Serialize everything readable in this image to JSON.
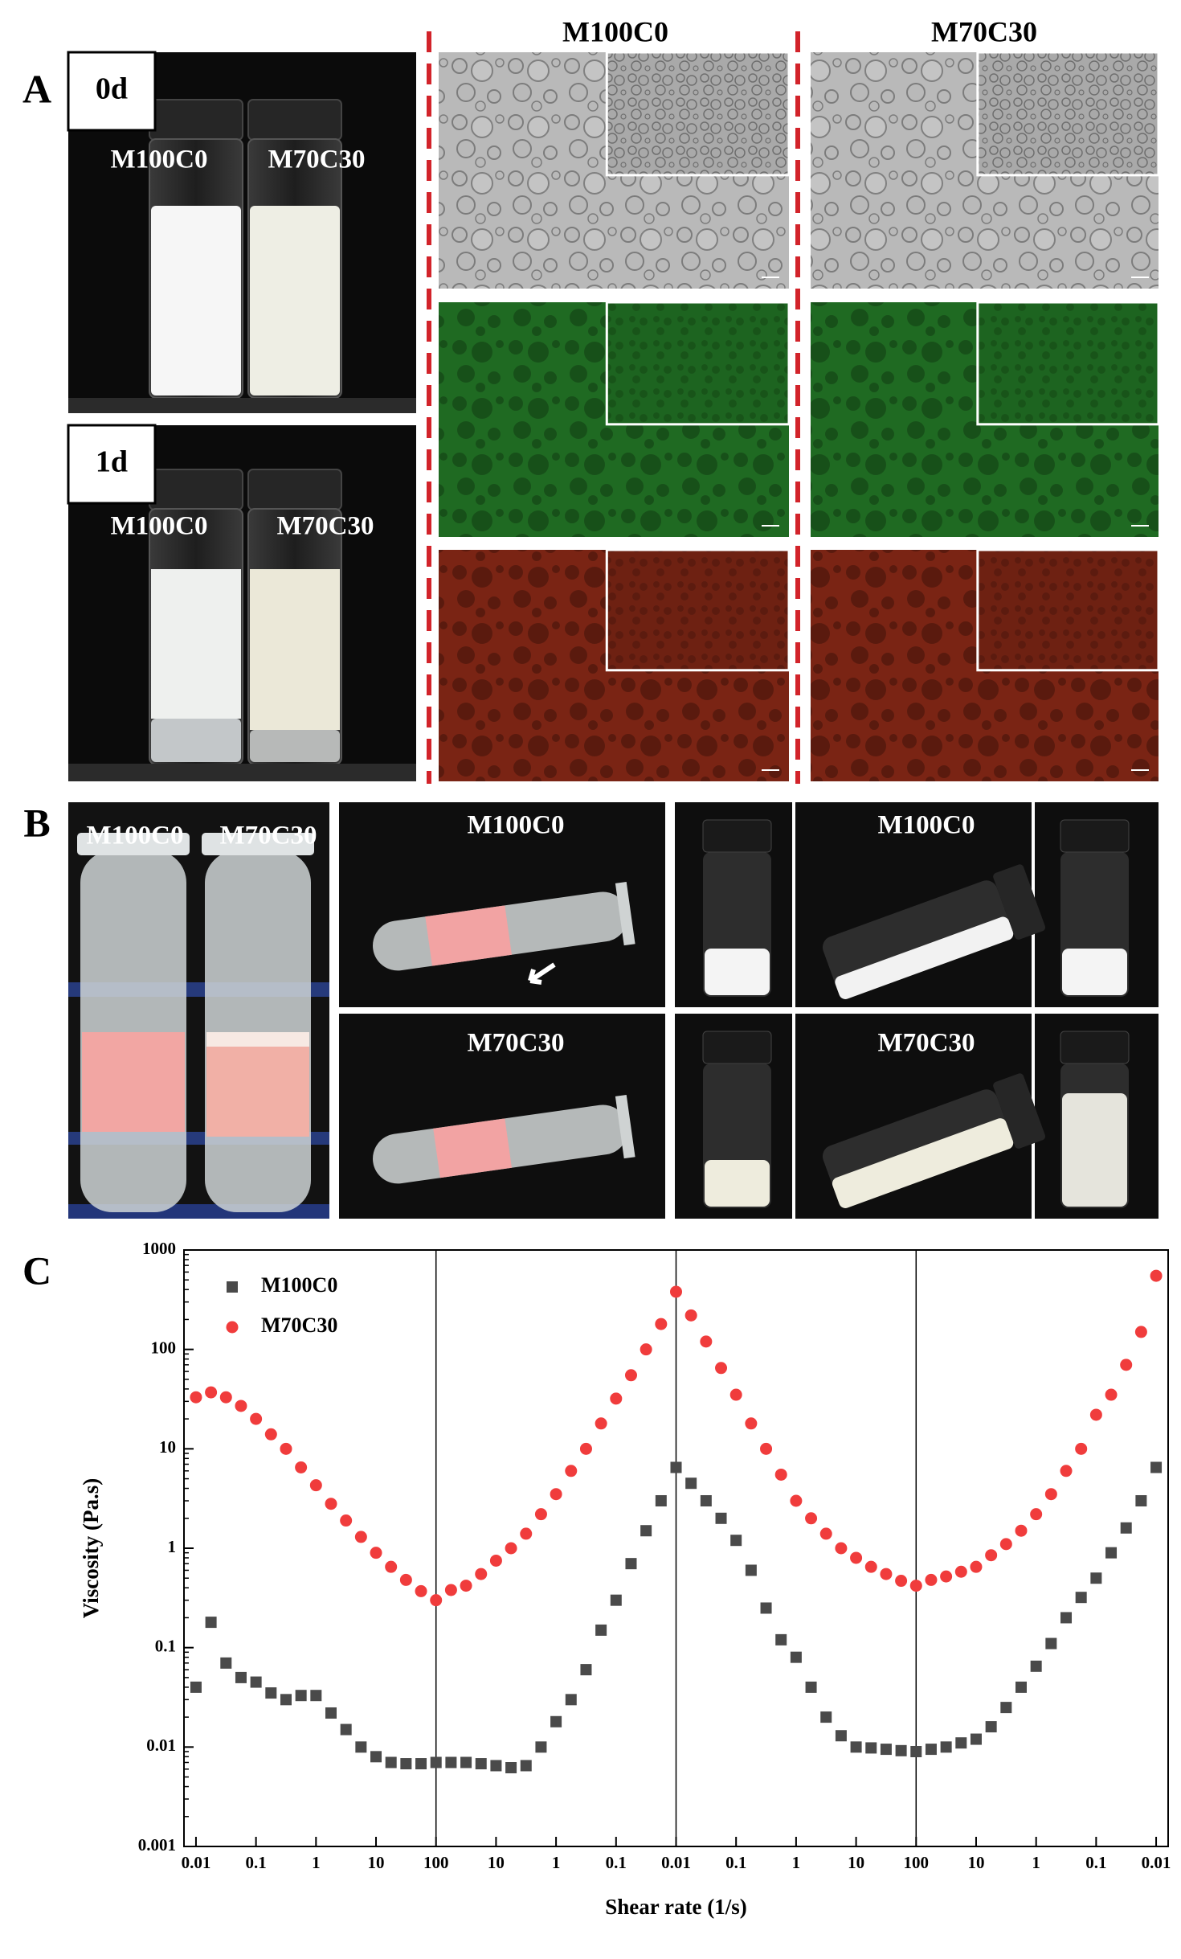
{
  "panels": {
    "a": {
      "label": "A",
      "photos": [
        {
          "day": "0d",
          "samples": [
            "M100C0",
            "M70C30"
          ]
        },
        {
          "day": "1d",
          "samples": [
            "M100C0",
            "M70C30"
          ]
        }
      ],
      "columns": [
        "M100C0",
        "M70C30"
      ]
    },
    "b": {
      "label": "B",
      "tubes": [
        "M100C0",
        "M70C30"
      ],
      "centrifuge": [
        "M100C0",
        "M70C30"
      ],
      "inversion": [
        "M100C0",
        "M70C30"
      ]
    },
    "c": {
      "label": "C"
    }
  },
  "chart_data": {
    "type": "scatter",
    "x_label": "Shear rate (1/s)",
    "y_label": "Viscosity (Pa.s)",
    "log_y": true,
    "legend": "upper-left",
    "xlim": [
      -0.2,
      16.2
    ],
    "xticks": [
      {
        "value": 0,
        "label": "0.01"
      },
      {
        "value": 1,
        "label": "0.1"
      },
      {
        "value": 2,
        "label": "1"
      },
      {
        "value": 3,
        "label": "10"
      },
      {
        "value": 4,
        "label": "100"
      },
      {
        "value": 5,
        "label": "10"
      },
      {
        "value": 6,
        "label": "1"
      },
      {
        "value": 7,
        "label": "0.1"
      },
      {
        "value": 8,
        "label": "0.01"
      },
      {
        "value": 9,
        "label": "0.1"
      },
      {
        "value": 10,
        "label": "1"
      },
      {
        "value": 11,
        "label": "10"
      },
      {
        "value": 12,
        "label": "100"
      },
      {
        "value": 13,
        "label": "10"
      },
      {
        "value": 14,
        "label": "1"
      },
      {
        "value": 15,
        "label": "0.1"
      },
      {
        "value": 16,
        "label": "0.01"
      }
    ],
    "ylim": [
      0.001,
      1000
    ],
    "yticks": [
      0.001,
      0.01,
      0.1,
      1,
      10,
      100,
      1000
    ],
    "x": [
      0,
      0.25,
      0.5,
      0.75,
      1,
      1.25,
      1.5,
      1.75,
      2,
      2.25,
      2.5,
      2.75,
      3,
      3.25,
      3.5,
      3.75,
      4,
      4.25,
      4.5,
      4.75,
      5,
      5.25,
      5.5,
      5.75,
      6,
      6.25,
      6.5,
      6.75,
      7,
      7.25,
      7.5,
      7.75,
      8,
      8.25,
      8.5,
      8.75,
      9,
      9.25,
      9.5,
      9.75,
      10,
      10.25,
      10.5,
      10.75,
      11,
      11.25,
      11.5,
      11.75,
      12,
      12.25,
      12.5,
      12.75,
      13,
      13.25,
      13.5,
      13.75,
      14,
      14.25,
      14.5,
      14.75,
      15,
      15.25,
      15.5,
      15.75,
      16
    ],
    "series": [
      {
        "name": "M100C0",
        "color": "#4a4a4a",
        "marker": "square",
        "values": [
          0.04,
          0.18,
          0.07,
          0.05,
          0.045,
          0.035,
          0.03,
          0.033,
          0.033,
          0.022,
          0.015,
          0.01,
          0.008,
          0.007,
          0.0068,
          0.0068,
          0.007,
          0.007,
          0.007,
          0.0068,
          0.0065,
          0.0062,
          0.0065,
          0.01,
          0.018,
          0.03,
          0.06,
          0.15,
          0.3,
          0.7,
          1.5,
          3,
          6.5,
          4.5,
          3,
          2,
          1.2,
          0.6,
          0.25,
          0.12,
          0.08,
          0.04,
          0.02,
          0.013,
          0.01,
          0.0098,
          0.0095,
          0.0092,
          0.009,
          0.0095,
          0.01,
          0.011,
          0.012,
          0.016,
          0.025,
          0.04,
          0.065,
          0.11,
          0.2,
          0.32,
          0.5,
          0.9,
          1.6,
          3,
          6.5
        ]
      },
      {
        "name": "M70C30",
        "color": "#f03c3c",
        "marker": "circle",
        "values": [
          33,
          37,
          33,
          27,
          20,
          14,
          10,
          6.5,
          4.3,
          2.8,
          1.9,
          1.3,
          0.9,
          0.65,
          0.48,
          0.37,
          0.3,
          0.38,
          0.42,
          0.55,
          0.75,
          1,
          1.4,
          2.2,
          3.5,
          6,
          10,
          18,
          32,
          55,
          100,
          180,
          380,
          220,
          120,
          65,
          35,
          18,
          10,
          5.5,
          3,
          2,
          1.4,
          1,
          0.8,
          0.65,
          0.55,
          0.47,
          0.42,
          0.48,
          0.52,
          0.58,
          0.65,
          0.85,
          1.1,
          1.5,
          2.2,
          3.5,
          6,
          10,
          22,
          35,
          70,
          150,
          550
        ]
      }
    ]
  }
}
